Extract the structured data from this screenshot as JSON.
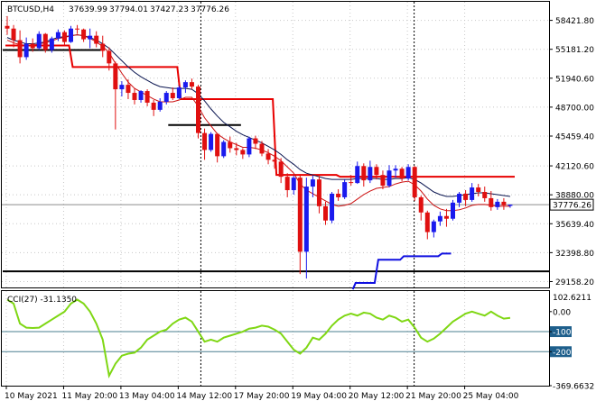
{
  "chart_data": [
    {
      "type": "candlestick",
      "symbol_header": "BTCUSD,H4",
      "ohlc_header": [
        "37639.99",
        "37794.01",
        "37427.23",
        "37776.26"
      ],
      "current_price_label": "37776.26",
      "price_ticks": [
        "58421.80",
        "55181.20",
        "51940.60",
        "48700.00",
        "45459.40",
        "42120.60",
        "38880.00",
        "35639.40",
        "32398.80",
        "29158.20"
      ],
      "price_tick_values": [
        58421.8,
        55181.2,
        51940.6,
        48700.0,
        45459.4,
        42120.6,
        38880.0,
        35639.4,
        32398.8,
        29158.2
      ],
      "current_price": 37776.26,
      "ylim": [
        28500,
        60500
      ],
      "time_ticks": [
        "10 May 2021",
        "11 May 20:00",
        "13 May 04:00",
        "14 May 12:00",
        "17 May 20:00",
        "19 May 04:00",
        "20 May 12:00",
        "21 May 20:00",
        "25 May 04:00"
      ],
      "candles": [
        [
          57800,
          58900,
          56800,
          57500
        ],
        [
          57500,
          57900,
          55400,
          56200
        ],
        [
          56200,
          57300,
          53600,
          54300
        ],
        [
          54300,
          56500,
          54000,
          55800
        ],
        [
          55800,
          56400,
          54900,
          55300
        ],
        [
          55300,
          57200,
          55100,
          56900
        ],
        [
          56900,
          57000,
          54800,
          55100
        ],
        [
          55100,
          56600,
          54800,
          56400
        ],
        [
          56400,
          57400,
          56100,
          57100
        ],
        [
          57100,
          57300,
          55600,
          56000
        ],
        [
          56000,
          57800,
          55900,
          57500
        ],
        [
          57500,
          57900,
          56900,
          57400
        ],
        [
          57400,
          57500,
          56000,
          56300
        ],
        [
          56300,
          57500,
          55300,
          56700
        ],
        [
          56700,
          57200,
          55400,
          55800
        ],
        [
          55800,
          56700,
          54300,
          55000
        ],
        [
          55000,
          55400,
          52800,
          53600
        ],
        [
          53600,
          53800,
          46200,
          50700
        ],
        [
          50700,
          51600,
          49900,
          51200
        ],
        [
          51200,
          51800,
          49600,
          50300
        ],
        [
          50300,
          50800,
          49000,
          49500
        ],
        [
          49500,
          50600,
          49200,
          50500
        ],
        [
          50500,
          50700,
          48800,
          49200
        ],
        [
          49200,
          49500,
          47700,
          48400
        ],
        [
          48400,
          49700,
          48200,
          49300
        ],
        [
          49300,
          50500,
          49000,
          50300
        ],
        [
          50300,
          50900,
          49500,
          49700
        ],
        [
          49700,
          51100,
          49600,
          50900
        ],
        [
          50900,
          51700,
          50300,
          51500
        ],
        [
          51500,
          51900,
          50700,
          51000
        ],
        [
          51000,
          51200,
          45200,
          45800
        ],
        [
          45800,
          46300,
          42800,
          43900
        ],
        [
          43900,
          45900,
          43700,
          45700
        ],
        [
          45700,
          45800,
          42500,
          43200
        ],
        [
          43200,
          45000,
          43000,
          44800
        ],
        [
          44800,
          45400,
          43600,
          44100
        ],
        [
          44100,
          44700,
          43300,
          43900
        ],
        [
          43900,
          44100,
          42900,
          43400
        ],
        [
          43400,
          45400,
          43100,
          45200
        ],
        [
          45200,
          45500,
          44000,
          44600
        ],
        [
          44600,
          44900,
          43200,
          43500
        ],
        [
          43500,
          44000,
          42300,
          42800
        ],
        [
          42800,
          43400,
          41800,
          42600
        ],
        [
          42600,
          43000,
          40200,
          40900
        ],
        [
          40900,
          41300,
          38600,
          39400
        ],
        [
          39400,
          41000,
          38900,
          40800
        ],
        [
          40800,
          41200,
          30000,
          32500
        ],
        [
          32500,
          40800,
          29500,
          39800
        ],
        [
          39800,
          41000,
          38600,
          40600
        ],
        [
          40600,
          41000,
          36800,
          37600
        ],
        [
          37600,
          38100,
          35500,
          36000
        ],
        [
          36000,
          39200,
          35700,
          39000
        ],
        [
          39000,
          39500,
          38200,
          38600
        ],
        [
          38600,
          40600,
          38400,
          40300
        ],
        [
          40300,
          41100,
          39900,
          40200
        ],
        [
          40200,
          42600,
          40100,
          42100
        ],
        [
          42100,
          42400,
          39800,
          40500
        ],
        [
          40500,
          42700,
          40200,
          42000
        ],
        [
          42000,
          42300,
          40600,
          41100
        ],
        [
          41100,
          41600,
          39500,
          39900
        ],
        [
          39900,
          42200,
          39700,
          41600
        ],
        [
          41600,
          42200,
          40800,
          41800
        ],
        [
          41800,
          42000,
          40400,
          40700
        ],
        [
          40700,
          42300,
          40500,
          42000
        ],
        [
          42000,
          42100,
          38200,
          38600
        ],
        [
          38600,
          38800,
          36000,
          36900
        ],
        [
          36900,
          37100,
          33900,
          34700
        ],
        [
          34700,
          36100,
          34100,
          35900
        ],
        [
          35900,
          37000,
          35400,
          36500
        ],
        [
          36500,
          37300,
          35300,
          36200
        ],
        [
          36200,
          38300,
          36000,
          38000
        ],
        [
          38000,
          39200,
          37500,
          39000
        ],
        [
          39000,
          39400,
          37600,
          38300
        ],
        [
          38300,
          40200,
          38100,
          39700
        ],
        [
          39700,
          40100,
          38700,
          39200
        ],
        [
          39200,
          39800,
          38100,
          38500
        ],
        [
          38500,
          39300,
          37100,
          37500
        ],
        [
          37500,
          38400,
          37200,
          38100
        ],
        [
          38100,
          38500,
          37200,
          37700
        ],
        [
          37640,
          37794,
          37427,
          37776
        ]
      ],
      "series": [
        {
          "key": "ma_slow",
          "color": "#0a1550",
          "values": [
            56500,
            56200,
            56000,
            55800,
            55800,
            55900,
            56000,
            56300,
            56500,
            56600,
            56700,
            56800,
            56700,
            56500,
            56200,
            55800,
            55300,
            54600,
            53900,
            53200,
            52600,
            52100,
            51700,
            51300,
            51000,
            50900,
            50800,
            50800,
            50800,
            50700,
            50200,
            49400,
            48500,
            47700,
            47000,
            46500,
            46000,
            45600,
            45300,
            45000,
            44700,
            44300,
            43900,
            43400,
            42800,
            42300,
            41700,
            41300,
            41100,
            40900,
            40700,
            40600,
            40600,
            40600,
            40600,
            40700,
            40700,
            40700,
            40700,
            40600,
            40600,
            40700,
            40700,
            40800,
            40600,
            40200,
            39700,
            39200,
            38900,
            38700,
            38700,
            38800,
            38900,
            39000,
            39100,
            39100,
            39000,
            38900,
            38800,
            38700
          ]
        },
        {
          "key": "ma_fast",
          "color": "#cc1010",
          "values": [
            56200,
            55900,
            55700,
            55600,
            55600,
            55800,
            55900,
            56100,
            56400,
            56500,
            56700,
            56800,
            56700,
            56400,
            56000,
            55500,
            54800,
            53600,
            52500,
            51500,
            50800,
            50400,
            50000,
            49600,
            49300,
            49300,
            49300,
            49500,
            49800,
            49800,
            48800,
            47500,
            46600,
            45700,
            45200,
            44800,
            44500,
            44200,
            44200,
            44100,
            43900,
            43600,
            43200,
            42700,
            42000,
            41300,
            40100,
            39400,
            39000,
            38600,
            38200,
            37800,
            37600,
            37700,
            37900,
            38400,
            38900,
            39300,
            39600,
            39700,
            39800,
            40100,
            40300,
            40400,
            40000,
            39300,
            38400,
            37700,
            37300,
            37100,
            37100,
            37200,
            37400,
            37700,
            37800,
            37800,
            37700,
            37600,
            37600,
            37600
          ]
        }
      ],
      "red_step": [
        [
          0,
          10,
          55600
        ],
        [
          10,
          27,
          53200
        ],
        [
          27,
          42,
          49600
        ],
        [
          42,
          52,
          41100
        ],
        [
          52,
          80,
          40900
        ]
      ],
      "blue_step": [
        [
          55,
          58,
          29000
        ],
        [
          58,
          62,
          31600
        ],
        [
          62,
          68,
          32000
        ],
        [
          68,
          70,
          32300
        ]
      ],
      "black_hlines": [
        [
          0,
          15,
          55100
        ],
        [
          26,
          37,
          46700
        ],
        [
          0,
          80,
          30300
        ]
      ],
      "horizontal_level": 30300
    },
    {
      "type": "line",
      "indicator_label": "CCI(27) -31.1350",
      "color": "#7fd714",
      "axis_ticks": [
        "0.00",
        "-100",
        "-200",
        "-369.6632"
      ],
      "axis_tick_values": [
        0,
        -100,
        -200,
        -369.6632
      ],
      "top_label": "102.6211",
      "ylim": [
        -369.6632,
        102.6211
      ],
      "levels": [
        -100,
        -200
      ],
      "values": [
        60,
        40,
        -60,
        -80,
        -82,
        -80,
        -60,
        -40,
        -20,
        0,
        40,
        60,
        40,
        0,
        -60,
        -140,
        -320,
        -260,
        -220,
        -210,
        -205,
        -180,
        -140,
        -120,
        -100,
        -90,
        -60,
        -40,
        -30,
        -50,
        -100,
        -150,
        -140,
        -150,
        -130,
        -120,
        -110,
        -100,
        -85,
        -80,
        -70,
        -75,
        -90,
        -110,
        -150,
        -190,
        -210,
        -180,
        -130,
        -140,
        -110,
        -70,
        -40,
        -20,
        -10,
        -20,
        -5,
        -10,
        -30,
        -40,
        -20,
        -30,
        -50,
        -40,
        -80,
        -130,
        -150,
        -135,
        -110,
        -80,
        -50,
        -30,
        -10,
        0,
        -10,
        -20,
        0,
        -20,
        -35,
        -31
      ]
    }
  ]
}
